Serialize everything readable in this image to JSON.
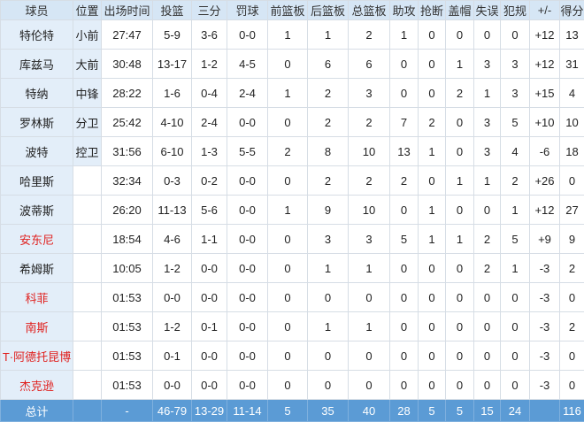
{
  "table": {
    "header": [
      "球员",
      "位置",
      "出场时间",
      "投篮",
      "三分",
      "罚球",
      "前篮板",
      "后篮板",
      "总篮板",
      "助攻",
      "抢断",
      "盖帽",
      "失误",
      "犯规",
      "+/-",
      "得分"
    ],
    "rows": [
      {
        "cells": [
          "特伦特",
          "小前",
          "27:47",
          "5-9",
          "3-6",
          "0-0",
          "1",
          "1",
          "2",
          "1",
          "0",
          "0",
          "0",
          "0",
          "+12",
          "13"
        ]
      },
      {
        "cells": [
          "库兹马",
          "大前",
          "30:48",
          "13-17",
          "1-2",
          "4-5",
          "0",
          "6",
          "6",
          "0",
          "0",
          "1",
          "3",
          "3",
          "+12",
          "31"
        ]
      },
      {
        "cells": [
          "特纳",
          "中锋",
          "28:22",
          "1-6",
          "0-4",
          "2-4",
          "1",
          "2",
          "3",
          "0",
          "0",
          "2",
          "1",
          "3",
          "+15",
          "4"
        ]
      },
      {
        "cells": [
          "罗林斯",
          "分卫",
          "25:42",
          "4-10",
          "2-4",
          "0-0",
          "0",
          "2",
          "2",
          "7",
          "2",
          "0",
          "3",
          "5",
          "+10",
          "10"
        ]
      },
      {
        "cells": [
          "波特",
          "控卫",
          "31:56",
          "6-10",
          "1-3",
          "5-5",
          "2",
          "8",
          "10",
          "13",
          "1",
          "0",
          "3",
          "4",
          "-6",
          "18"
        ]
      },
      {
        "cells": [
          "哈里斯",
          null,
          "32:34",
          "0-3",
          "0-2",
          "0-0",
          "0",
          "2",
          "2",
          "2",
          "0",
          "1",
          "1",
          "2",
          "+26",
          "0"
        ]
      },
      {
        "cells": [
          "波蒂斯",
          null,
          "26:20",
          "11-13",
          "5-6",
          "0-0",
          "1",
          "9",
          "10",
          "0",
          "1",
          "0",
          "0",
          "1",
          "+12",
          "27"
        ]
      },
      {
        "cells": [
          "安东尼",
          null,
          "18:54",
          "4-6",
          "1-1",
          "0-0",
          "0",
          "3",
          "3",
          "5",
          "1",
          "1",
          "2",
          "5",
          "+9",
          "9"
        ],
        "name_color": "#e0201e"
      },
      {
        "cells": [
          "希姆斯",
          null,
          "10:05",
          "1-2",
          "0-0",
          "0-0",
          "0",
          "1",
          "1",
          "0",
          "0",
          "0",
          "2",
          "1",
          "-3",
          "2"
        ]
      },
      {
        "cells": [
          "科菲",
          null,
          "01:53",
          "0-0",
          "0-0",
          "0-0",
          "0",
          "0",
          "0",
          "0",
          "0",
          "0",
          "0",
          "0",
          "-3",
          "0"
        ],
        "name_color": "#e0201e"
      },
      {
        "cells": [
          "南斯",
          null,
          "01:53",
          "1-2",
          "0-1",
          "0-0",
          "0",
          "1",
          "1",
          "0",
          "0",
          "0",
          "0",
          "0",
          "-3",
          "2"
        ],
        "name_color": "#e0201e"
      },
      {
        "cells": [
          "T·阿德托昆博",
          null,
          "01:53",
          "0-1",
          "0-0",
          "0-0",
          "0",
          "0",
          "0",
          "0",
          "0",
          "0",
          "0",
          "0",
          "-3",
          "0"
        ],
        "name_color": "#e0201e"
      },
      {
        "cells": [
          "杰克逊",
          null,
          "01:53",
          "0-0",
          "0-0",
          "0-0",
          "0",
          "0",
          "0",
          "0",
          "0",
          "0",
          "0",
          "0",
          "-3",
          "0"
        ],
        "name_color": "#e0201e"
      }
    ],
    "total": [
      "总计",
      null,
      "-",
      "46-79",
      "13-29",
      "11-14",
      "5",
      "35",
      "40",
      "28",
      "5",
      "5",
      "15",
      "24",
      null,
      "116"
    ]
  }
}
